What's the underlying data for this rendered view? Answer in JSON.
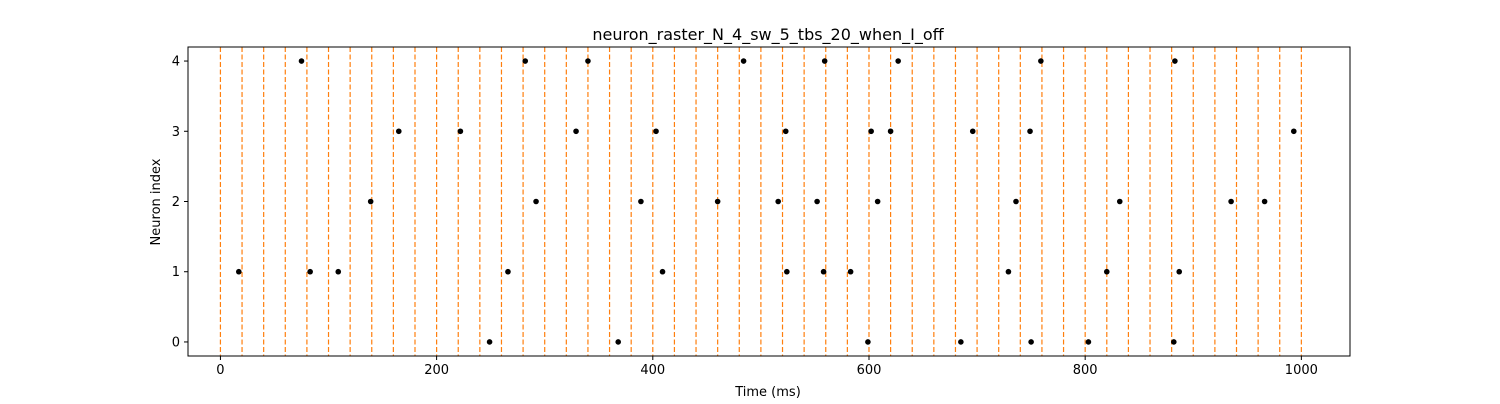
{
  "chart_data": {
    "type": "scatter",
    "title": "neuron_raster_N_4_sw_5_tbs_20_when_I_off",
    "xlabel": "Time (ms)",
    "ylabel": "Neuron index",
    "xlim": [
      -30,
      1045
    ],
    "ylim": [
      -0.2,
      4.2
    ],
    "x_ticks": [
      0,
      200,
      400,
      600,
      800,
      1000
    ],
    "y_ticks": [
      0,
      1,
      2,
      3,
      4
    ],
    "grid": false,
    "vlines": {
      "description_color": "#ff7f0e",
      "style": "dashed",
      "x": [
        0,
        20,
        40,
        60,
        80,
        100,
        120,
        140,
        160,
        180,
        200,
        220,
        240,
        260,
        280,
        300,
        320,
        340,
        360,
        380,
        400,
        420,
        440,
        460,
        480,
        500,
        520,
        540,
        560,
        580,
        600,
        620,
        640,
        660,
        680,
        700,
        720,
        740,
        760,
        780,
        800,
        820,
        840,
        860,
        880,
        900,
        920,
        940,
        960,
        980,
        1000
      ]
    },
    "marker_color": "#000000",
    "spikes": [
      {
        "neuron": 0,
        "times": [
          249,
          368,
          599,
          685,
          750,
          803,
          882
        ]
      },
      {
        "neuron": 1,
        "times": [
          17,
          83,
          109,
          266,
          409,
          524,
          558,
          583,
          729,
          820,
          887
        ]
      },
      {
        "neuron": 2,
        "times": [
          139,
          292,
          389,
          460,
          516,
          552,
          608,
          736,
          832,
          935,
          966
        ]
      },
      {
        "neuron": 3,
        "times": [
          165,
          222,
          329,
          403,
          523,
          602,
          620,
          696,
          749,
          993
        ]
      },
      {
        "neuron": 4,
        "times": [
          75,
          282,
          340,
          484,
          559,
          627,
          759,
          883
        ]
      }
    ]
  }
}
